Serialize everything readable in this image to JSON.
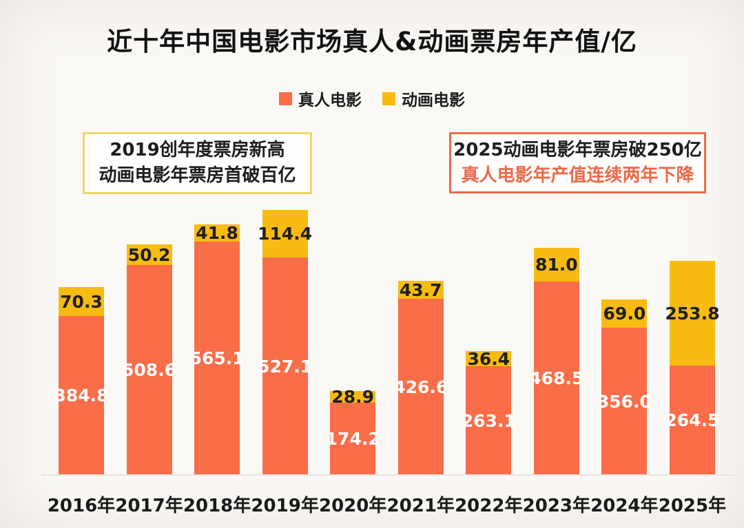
{
  "title": "近十年中国电影市场真人&动画票房年产值/亿",
  "legend": [
    {
      "name": "live-action",
      "label": "真人电影",
      "color": "#f96d48"
    },
    {
      "name": "animation",
      "label": "动画电影",
      "color": "#f7bb12"
    }
  ],
  "annotations": {
    "left": {
      "border_color": "#f0d66a",
      "line1": "2019创年度票房新高",
      "line2": "动画电影年票房首破百亿",
      "line1_color": "#1d1d1d",
      "line2_color": "#1d1d1d"
    },
    "right": {
      "border_color": "#ec6a4a",
      "line1": "2025动画电影年票房破250亿",
      "line2": "真人电影年产值连续两年下降",
      "line1_color": "#1d1d1d",
      "line2_color": "#ec6a4a"
    }
  },
  "chart_data": {
    "type": "bar",
    "stacked": true,
    "title": "近十年中国电影市场真人&动画票房年产值/亿",
    "unit": "亿",
    "xlabel": "",
    "ylabel": "票房年产值/亿",
    "ylim": [
      0,
      650
    ],
    "grid": false,
    "legend_position": "top-center",
    "categories": [
      "2016年",
      "2017年",
      "2018年",
      "2019年",
      "2020年",
      "2021年",
      "2022年",
      "2023年",
      "2024年",
      "2025年"
    ],
    "series": [
      {
        "name": "真人电影",
        "color": "#f96d48",
        "label_color": "#ffffff",
        "values": [
          384.8,
          508.6,
          565.1,
          527.1,
          174.2,
          426.6,
          263.1,
          468.5,
          356.0,
          264.5
        ]
      },
      {
        "name": "动画电影",
        "color": "#f7bb12",
        "label_color": "#1f1f1f",
        "values": [
          70.3,
          50.2,
          41.8,
          114.4,
          28.9,
          43.7,
          36.4,
          81.0,
          69.0,
          253.8
        ]
      }
    ]
  }
}
